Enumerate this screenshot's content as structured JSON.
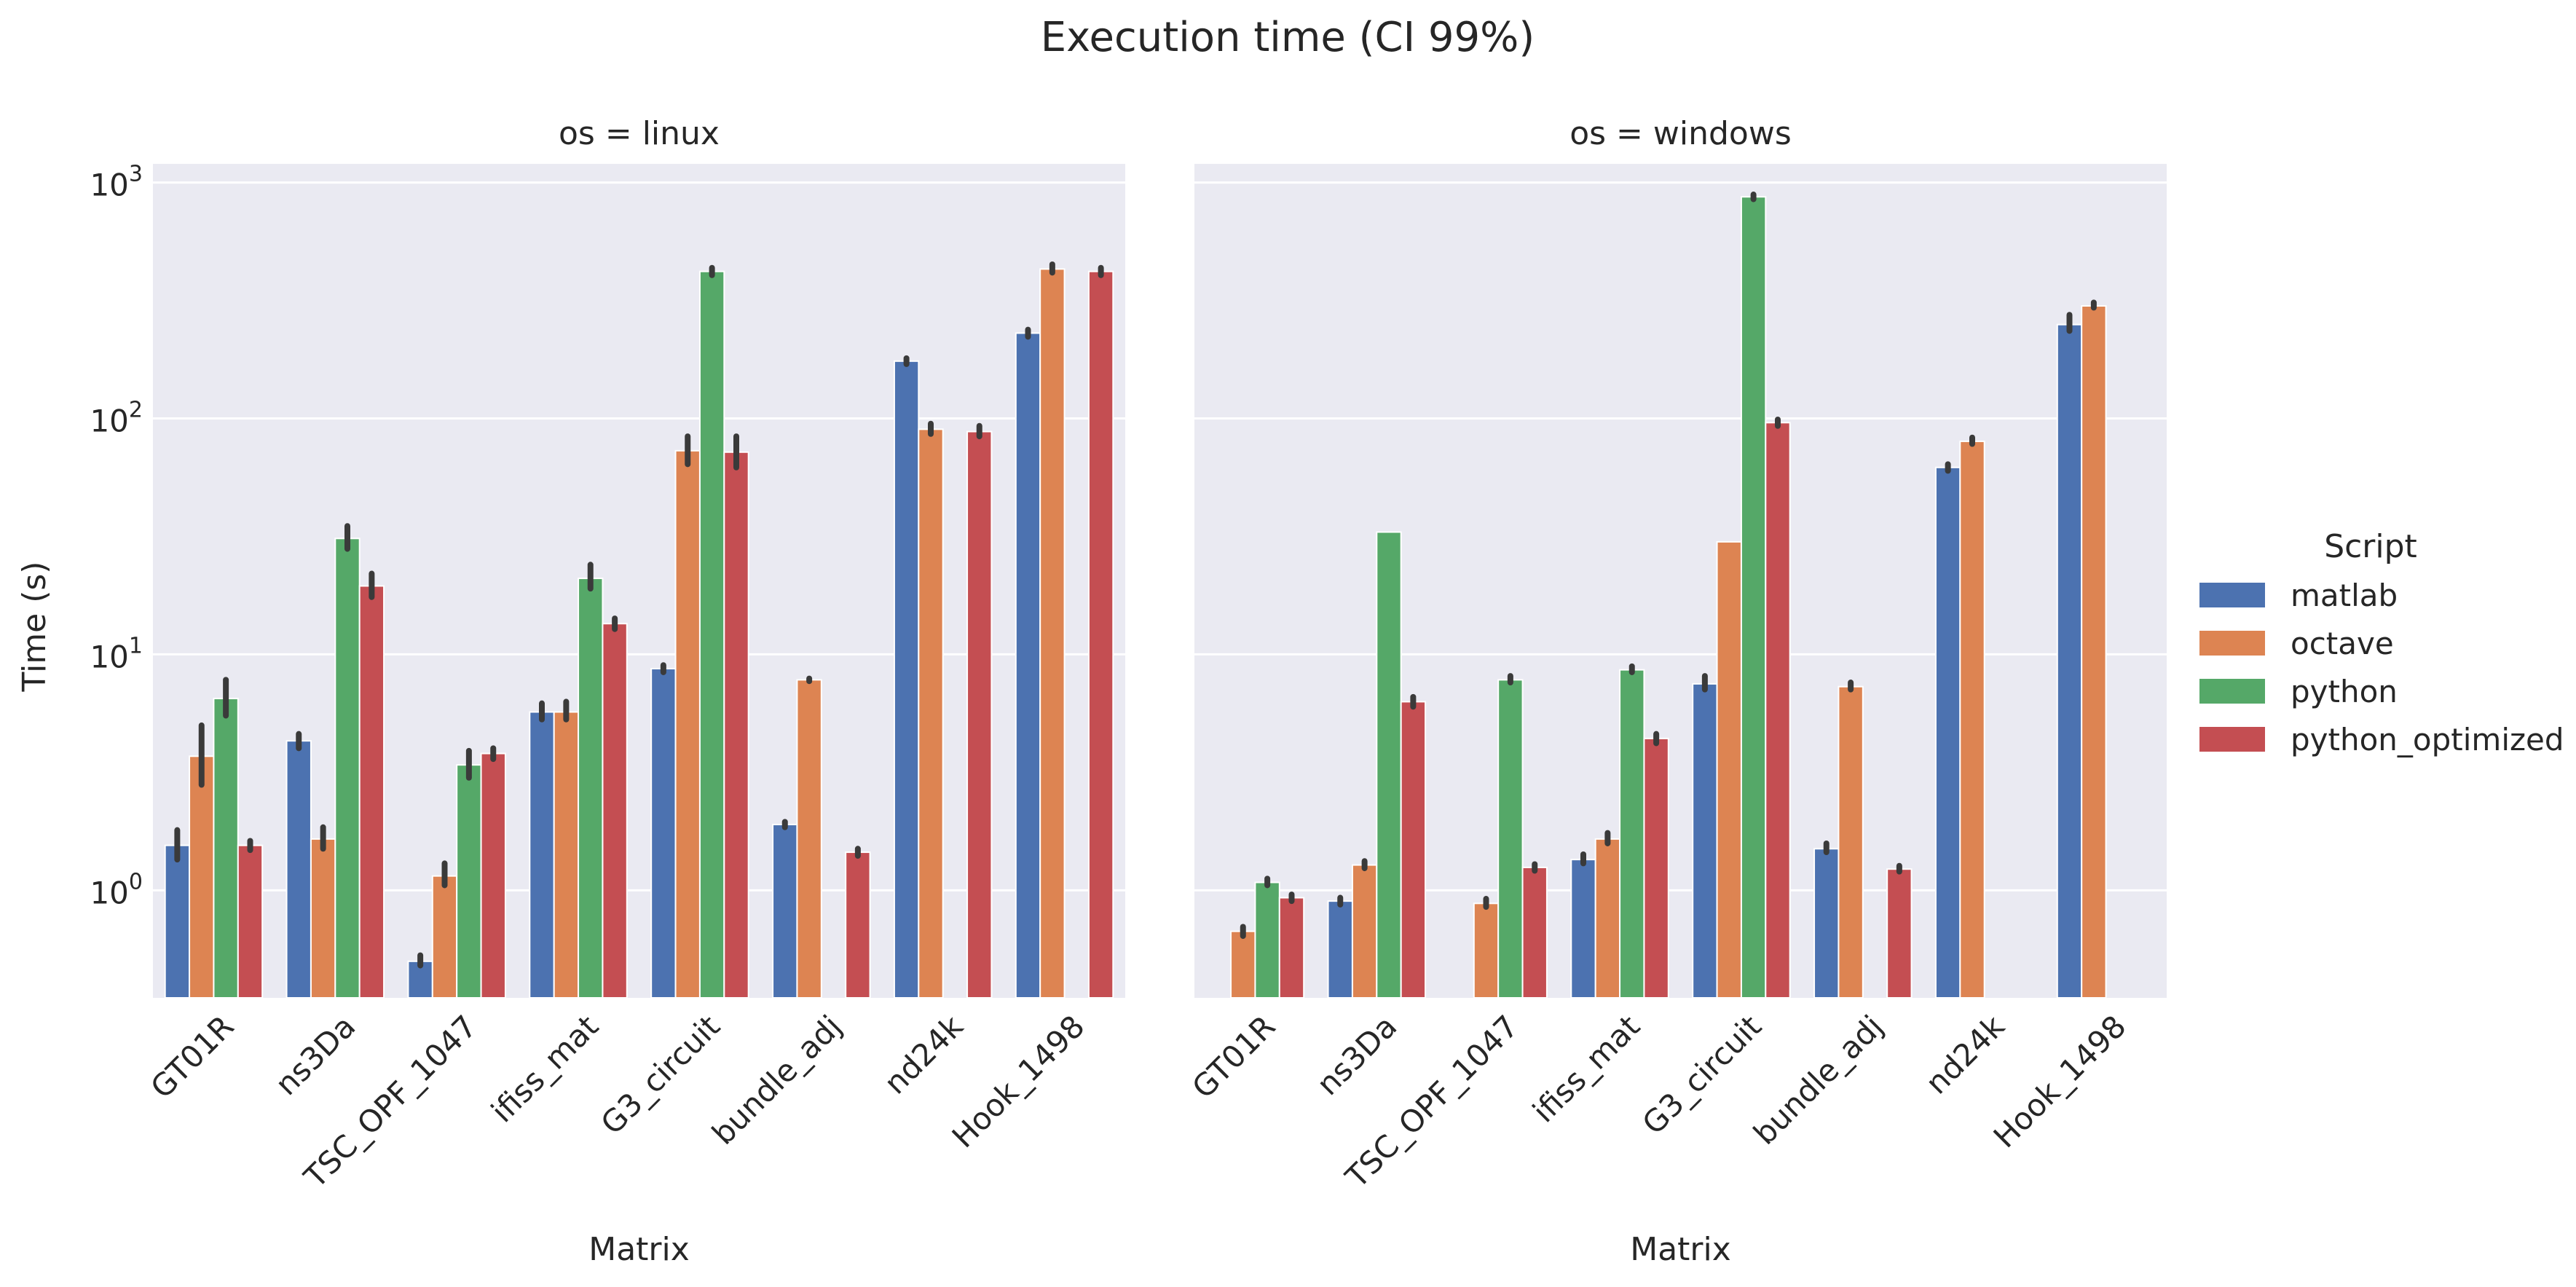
{
  "chart_data": {
    "type": "bar",
    "title": "Execution time (CI 99%)",
    "ylabel": "Time (s)",
    "xlabel": "Matrix",
    "yscale": "log",
    "ylim": [
      0.35,
      1200
    ],
    "y_ticks": [
      1,
      10,
      100,
      1000
    ],
    "grid": true,
    "legend": {
      "title": "Script",
      "placement": "right",
      "entries": [
        "matlab",
        "octave",
        "python",
        "python_optimized"
      ]
    },
    "colors": {
      "matlab": "#4c72b0",
      "octave": "#dd8452",
      "python": "#55a868",
      "python_optimized": "#c44e52",
      "plot_bg": "#eaeaf2",
      "grid": "#ffffff",
      "errorbar": "#3a3a3a"
    },
    "categories": [
      "GT01R",
      "ns3Da",
      "TSC_OPF_1047",
      "ifiss_mat",
      "G3_circuit",
      "bundle_adj",
      "nd24k",
      "Hook_1498"
    ],
    "facets": [
      {
        "title": "os = linux",
        "series": [
          {
            "name": "matlab",
            "values": [
              1.55,
              4.3,
              0.5,
              5.7,
              8.7,
              1.9,
              175,
              230
            ]
          },
          {
            "name": "octave",
            "values": [
              3.7,
              1.65,
              1.15,
              5.7,
              73,
              7.8,
              90,
              430
            ]
          },
          {
            "name": "python",
            "values": [
              6.5,
              31,
              3.4,
              21,
              420,
              null,
              null,
              null
            ]
          },
          {
            "name": "python_optimized",
            "values": [
              1.55,
              19.5,
              3.8,
              13.5,
              72,
              1.45,
              88,
              420
            ]
          }
        ],
        "errors": [
          {
            "name": "matlab",
            "ranges": [
              [
                1.35,
                1.8
              ],
              [
                4.0,
                4.6
              ],
              [
                0.48,
                0.53
              ],
              [
                5.3,
                6.2
              ],
              [
                8.4,
                9.0
              ],
              [
                1.85,
                1.95
              ],
              [
                170,
                180
              ],
              [
                222,
                238
              ]
            ]
          },
          {
            "name": "octave",
            "ranges": [
              [
                2.8,
                5.0
              ],
              [
                1.5,
                1.85
              ],
              [
                1.05,
                1.3
              ],
              [
                5.3,
                6.3
              ],
              [
                64,
                84
              ],
              [
                7.7,
                7.9
              ],
              [
                86,
                95
              ],
              [
                415,
                450
              ]
            ]
          },
          {
            "name": "python",
            "ranges": [
              [
                5.5,
                7.8
              ],
              [
                28,
                35
              ],
              [
                3.0,
                3.9
              ],
              [
                19,
                24
              ],
              [
                405,
                435
              ],
              null,
              null,
              null
            ]
          },
          {
            "name": "python_optimized",
            "ranges": [
              [
                1.48,
                1.62
              ],
              [
                17.5,
                22
              ],
              [
                3.6,
                4.0
              ],
              [
                12.8,
                14.2
              ],
              [
                62,
                84
              ],
              [
                1.4,
                1.5
              ],
              [
                84,
                93
              ],
              [
                405,
                435
              ]
            ]
          }
        ]
      },
      {
        "title": "os = windows",
        "series": [
          {
            "name": "matlab",
            "values": [
              null,
              0.9,
              0.35,
              1.35,
              7.5,
              1.5,
              62,
              250
            ]
          },
          {
            "name": "octave",
            "values": [
              0.67,
              1.28,
              0.88,
              1.65,
              30,
              7.3,
              80,
              300
            ]
          },
          {
            "name": "python",
            "values": [
              1.08,
              33,
              7.8,
              8.6,
              870,
              null,
              null,
              null
            ]
          },
          {
            "name": "python_optimized",
            "values": [
              0.93,
              6.3,
              1.25,
              4.4,
              96,
              1.23,
              null,
              null
            ]
          }
        ],
        "errors": [
          {
            "name": "matlab",
            "ranges": [
              null,
              [
                0.87,
                0.93
              ],
              null,
              [
                1.3,
                1.42
              ],
              [
                7.1,
                8.1
              ],
              [
                1.45,
                1.58
              ],
              [
                60,
                64
              ],
              [
                235,
                275
              ]
            ]
          },
          {
            "name": "octave",
            "ranges": [
              [
                0.64,
                0.7
              ],
              [
                1.24,
                1.33
              ],
              [
                0.85,
                0.92
              ],
              [
                1.58,
                1.75
              ],
              null,
              [
                7.1,
                7.6
              ],
              [
                78,
                83
              ],
              [
                295,
                310
              ]
            ]
          },
          {
            "name": "python",
            "ranges": [
              [
                1.05,
                1.12
              ],
              null,
              [
                7.6,
                8.1
              ],
              [
                8.4,
                8.9
              ],
              [
                850,
                890
              ],
              null,
              null,
              null
            ]
          },
          {
            "name": "python_optimized",
            "ranges": [
              [
                0.9,
                0.96
              ],
              [
                6.0,
                6.6
              ],
              [
                1.21,
                1.29
              ],
              [
                4.2,
                4.6
              ],
              [
                93,
                99
              ],
              [
                1.2,
                1.27
              ],
              null,
              null
            ]
          }
        ]
      }
    ]
  }
}
